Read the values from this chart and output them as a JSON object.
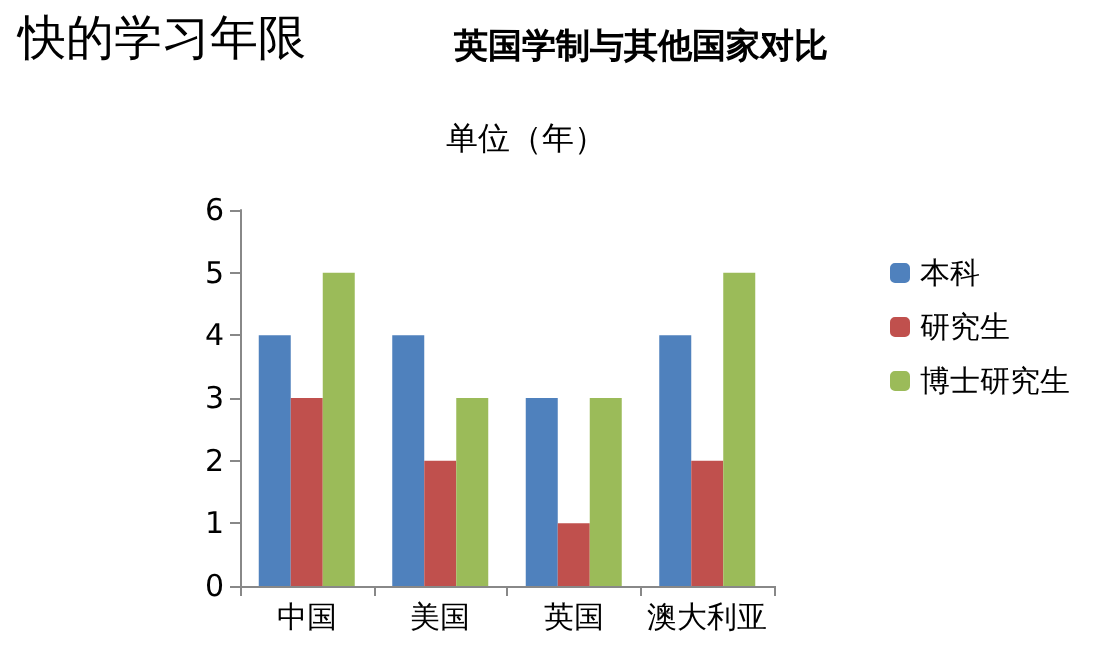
{
  "chart_data": {
    "type": "bar",
    "title": "快的学习年限",
    "subtitle": "英国学制与其他国家对比",
    "annotations": [
      "单位（年）"
    ],
    "categories": [
      "中国",
      "美国",
      "英国",
      "澳大利亚"
    ],
    "series": [
      {
        "name": "本科",
        "color": "#4f81bd",
        "values": [
          4,
          4,
          3,
          4
        ]
      },
      {
        "name": "研究生",
        "color": "#c0504d",
        "values": [
          3,
          2,
          1,
          2
        ]
      },
      {
        "name": "博士研究生",
        "color": "#9bbb59",
        "values": [
          5,
          3,
          3,
          5
        ]
      }
    ],
    "ylim": [
      0,
      6
    ],
    "yticks": [
      0,
      1,
      2,
      3,
      4,
      5,
      6
    ],
    "grid": false,
    "legend": "right"
  }
}
